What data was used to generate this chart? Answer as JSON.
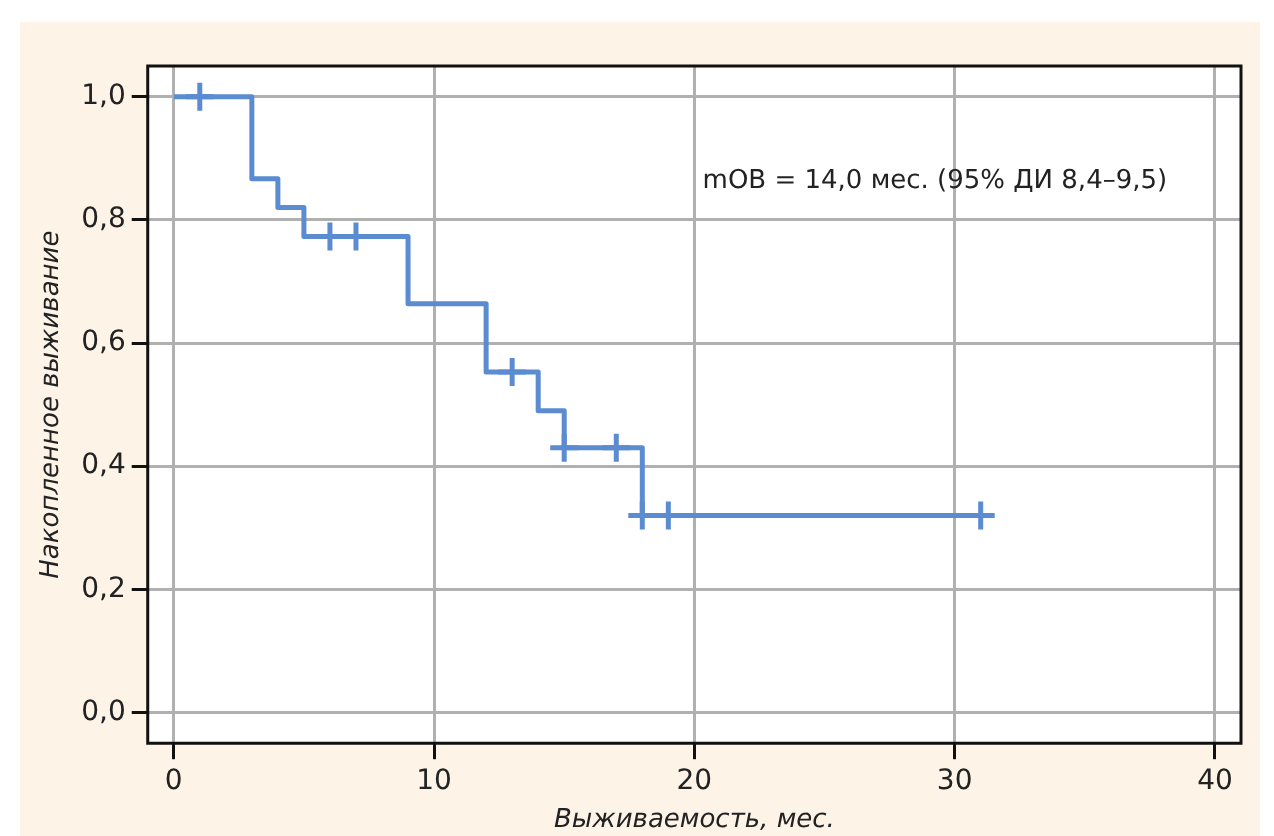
{
  "chart_data": {
    "type": "step",
    "xlabel": "Выживаемость, мес.",
    "ylabel": "Накопленное выживание",
    "annotations": [
      "mOB = 14,0 мес. (95% ДИ 8,4–9,5)"
    ],
    "xlim": [
      -1,
      41
    ],
    "xticks": [
      0,
      10,
      20,
      30,
      40
    ],
    "ylim": [
      -0.05,
      1.05
    ],
    "yticks": [
      {
        "value": 0,
        "label": "0,0"
      },
      {
        "value": 0.2,
        "label": "0,2"
      },
      {
        "value": 0.4,
        "label": "0,4"
      },
      {
        "value": 0.6,
        "label": "0,6"
      },
      {
        "value": 0.8,
        "label": "0,8"
      },
      {
        "value": 1,
        "label": "1,0"
      }
    ],
    "grid": true,
    "legend": false,
    "series": [
      {
        "color": "#5b8bd0",
        "x": [
          0,
          3,
          4,
          5,
          9,
          12,
          14,
          15,
          18,
          31
        ],
        "values": [
          1,
          0.867,
          0.82,
          0.773,
          0.664,
          0.553,
          0.49,
          0.43,
          0.32,
          0.32
        ]
      },
      {
        "type": "scatter",
        "marker": "cross",
        "color": "#5b8bd0",
        "x": [
          1,
          6,
          7,
          13,
          15,
          17,
          18,
          19,
          31
        ],
        "values": [
          1,
          0.773,
          0.773,
          0.553,
          0.43,
          0.43,
          0.32,
          0.32,
          0.32
        ]
      }
    ]
  }
}
